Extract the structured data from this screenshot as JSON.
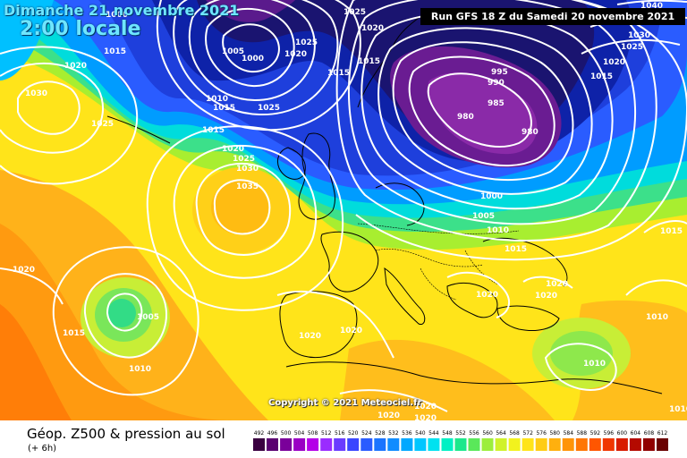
{
  "header": {
    "date": "Dimanche 21 novembre 2021",
    "time": "2:00 locale",
    "run": "Run GFS 18 Z du Samedi 20 novembre 2021"
  },
  "copyright": "Copyright © 2021 Meteociel.fr",
  "footer": {
    "title": "Géop. Z500 & pression au sol",
    "subtitle": "(+ 6h)"
  },
  "legend": {
    "ticks": [
      "492",
      "496",
      "500",
      "504",
      "508",
      "512",
      "516",
      "520",
      "524",
      "528",
      "532",
      "536",
      "540",
      "544",
      "548",
      "552",
      "556",
      "560",
      "564",
      "568",
      "572",
      "576",
      "580",
      "584",
      "588",
      "592",
      "596",
      "600",
      "604",
      "608",
      "612"
    ],
    "colors": [
      "#3a0040",
      "#5a0070",
      "#7a009a",
      "#9a00c4",
      "#b400e8",
      "#9a2cff",
      "#6a3cff",
      "#3a46ff",
      "#2a5cff",
      "#1a74ff",
      "#108cff",
      "#00a8ff",
      "#00c6ff",
      "#00e2f0",
      "#00f0c4",
      "#1ce88c",
      "#5ae85a",
      "#9cee3c",
      "#d0f22a",
      "#f2f21e",
      "#ffe41a",
      "#ffcc14",
      "#ffb00e",
      "#ff9408",
      "#ff7604",
      "#ff5600",
      "#f03600",
      "#d81c00",
      "#b40a00",
      "#900000",
      "#6a0000"
    ]
  },
  "pressure_labels": [
    {
      "id": "p1",
      "text": "1000"
    },
    {
      "id": "p2",
      "text": "1015"
    },
    {
      "id": "p3",
      "text": "1025"
    },
    {
      "id": "p4",
      "text": "1020"
    },
    {
      "id": "p5",
      "text": "1040"
    },
    {
      "id": "p6",
      "text": "1030"
    },
    {
      "id": "p7",
      "text": "1025"
    },
    {
      "id": "p8",
      "text": "1020"
    },
    {
      "id": "p9",
      "text": "1005"
    },
    {
      "id": "p10",
      "text": "1000"
    },
    {
      "id": "p11",
      "text": "1025"
    },
    {
      "id": "p12",
      "text": "1020"
    },
    {
      "id": "p13",
      "text": "1015"
    },
    {
      "id": "p14",
      "text": "1015"
    },
    {
      "id": "p15",
      "text": "1020"
    },
    {
      "id": "p16",
      "text": "1030"
    },
    {
      "id": "p17",
      "text": "1025"
    },
    {
      "id": "p18",
      "text": "1010"
    },
    {
      "id": "p19",
      "text": "1015"
    },
    {
      "id": "p20",
      "text": "1025"
    },
    {
      "id": "p21",
      "text": "1015"
    },
    {
      "id": "p22",
      "text": "1020"
    },
    {
      "id": "p23",
      "text": "1025"
    },
    {
      "id": "p24",
      "text": "1030"
    },
    {
      "id": "p25",
      "text": "1035"
    },
    {
      "id": "p26",
      "text": "995"
    },
    {
      "id": "p27",
      "text": "990"
    },
    {
      "id": "p28",
      "text": "985"
    },
    {
      "id": "p29",
      "text": "980"
    },
    {
      "id": "p30",
      "text": "980"
    },
    {
      "id": "p31",
      "text": "1000"
    },
    {
      "id": "p32",
      "text": "1005"
    },
    {
      "id": "p33",
      "text": "1010"
    },
    {
      "id": "p34",
      "text": "1015"
    },
    {
      "id": "p35",
      "text": "1015"
    },
    {
      "id": "p36",
      "text": "1020"
    },
    {
      "id": "p37",
      "text": "1005"
    },
    {
      "id": "p38",
      "text": "1015"
    },
    {
      "id": "p39",
      "text": "1010"
    },
    {
      "id": "p40",
      "text": "1020"
    },
    {
      "id": "p41",
      "text": "1020"
    },
    {
      "id": "p42",
      "text": "1020"
    },
    {
      "id": "p43",
      "text": "1020"
    },
    {
      "id": "p44",
      "text": "1020"
    },
    {
      "id": "p45",
      "text": "1010"
    },
    {
      "id": "p46",
      "text": "1010"
    },
    {
      "id": "p47",
      "text": "1020"
    },
    {
      "id": "p48",
      "text": "1020"
    },
    {
      "id": "p49",
      "text": "1010"
    },
    {
      "id": "p50",
      "text": "1020"
    },
    {
      "id": "p51",
      "text": "1015"
    }
  ]
}
